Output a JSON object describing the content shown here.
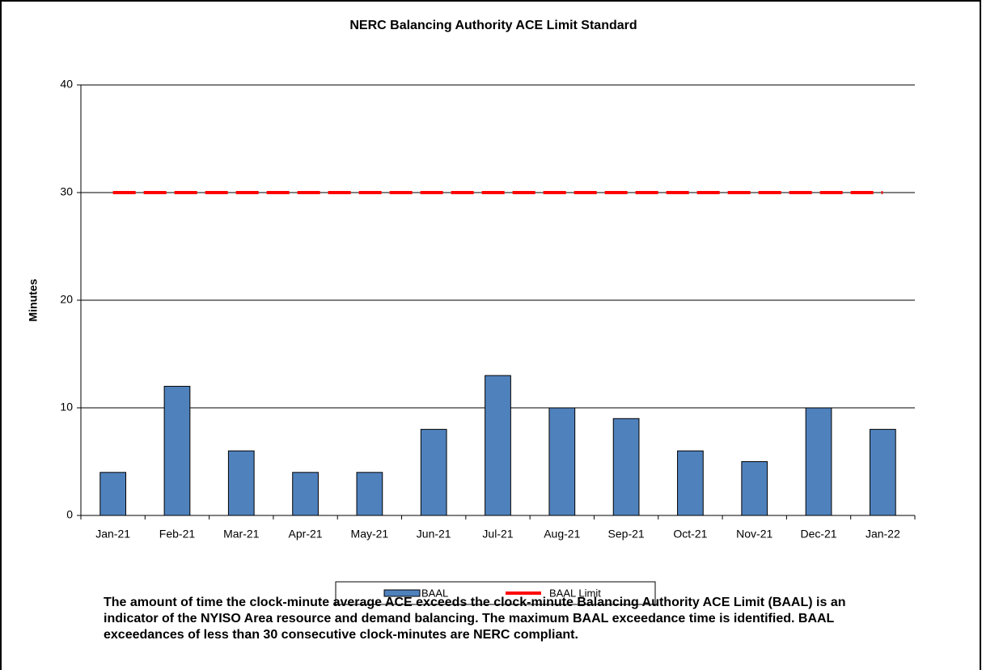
{
  "chart_data": {
    "type": "bar",
    "title": "NERC Balancing Authority ACE Limit Standard",
    "y_label": "Minutes",
    "categories": [
      "Jan-21",
      "Feb-21",
      "Mar-21",
      "Apr-21",
      "May-21",
      "Jun-21",
      "Jul-21",
      "Aug-21",
      "Sep-21",
      "Oct-21",
      "Nov-21",
      "Dec-21",
      "Jan-22"
    ],
    "series": [
      {
        "name": "BAAL",
        "type": "bar",
        "color": "#4f81bd",
        "values": [
          4,
          12,
          6,
          4,
          4,
          8,
          13,
          10,
          9,
          6,
          5,
          10,
          8
        ]
      },
      {
        "name": "BAAL Limit",
        "type": "line",
        "color": "#ff0000",
        "values": [
          30,
          30,
          30,
          30,
          30,
          30,
          30,
          30,
          30,
          30,
          30,
          30,
          30
        ]
      }
    ],
    "ylim": [
      0,
      40
    ],
    "yticks": [
      0,
      10,
      20,
      30,
      40
    ],
    "grid": true,
    "legend": "bottom",
    "note": "The  amount of time the clock-minute average ACE exceeds the clock-minute Balancing Authority ACE Limit (BAAL)  is an indicator of the NYISO Area resource and demand balancing. The maximum BAAL exceedance time is identified. BAAL exceedances of less than 30 consecutive clock-minutes are NERC compliant."
  }
}
